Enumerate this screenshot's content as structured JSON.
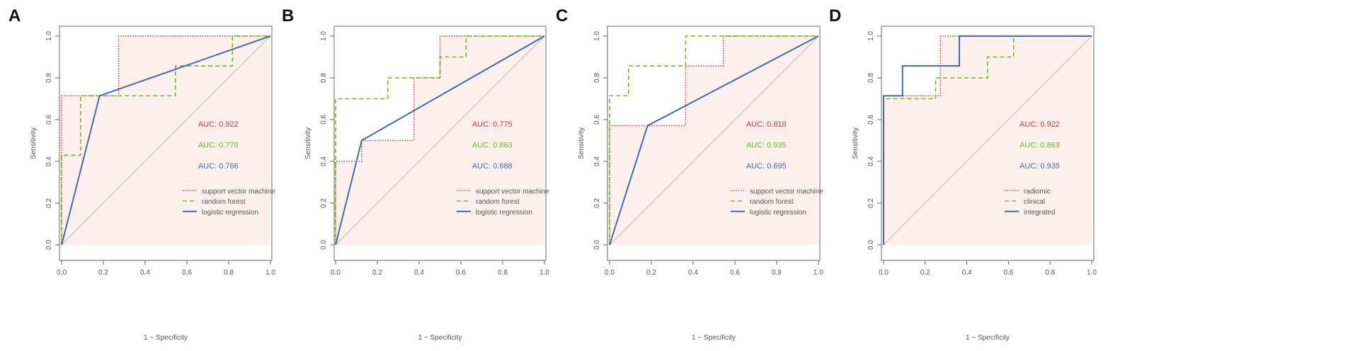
{
  "figure": {
    "description_panels": [
      "A",
      "B",
      "C",
      "D"
    ]
  },
  "colors": {
    "red": "#d63a3a",
    "green": "#66bb22",
    "blue": "#4468b0",
    "fill": "#fdf0ec",
    "diag": "#b8b8b8",
    "axis": "#666666",
    "text": "#555555"
  },
  "chart_data": [
    {
      "type": "line",
      "panel_label": "A",
      "xlabel": "1 − Specificity",
      "ylabel": "Sensitivity",
      "xlim": [
        0,
        1
      ],
      "ylim": [
        0,
        1
      ],
      "ticks": [
        "0.0",
        "0.2",
        "0.4",
        "0.6",
        "0.8",
        "1.0"
      ],
      "grid": false,
      "legend_position": "bottom-right",
      "series": [
        {
          "name": "support vector machine",
          "auc": "AUC: 0.922",
          "color_key": "red",
          "style": "dotted",
          "points": [
            [
              0,
              0
            ],
            [
              0,
              0.714
            ],
            [
              0.273,
              0.714
            ],
            [
              0.273,
              1
            ],
            [
              1,
              1
            ]
          ]
        },
        {
          "name": "random forest",
          "auc": "AUC: 0.779",
          "color_key": "green",
          "style": "dashed",
          "points": [
            [
              0,
              0
            ],
            [
              0,
              0.429
            ],
            [
              0.091,
              0.429
            ],
            [
              0.091,
              0.714
            ],
            [
              0.545,
              0.714
            ],
            [
              0.545,
              0.857
            ],
            [
              0.818,
              0.857
            ],
            [
              0.818,
              1
            ],
            [
              1,
              1
            ]
          ]
        },
        {
          "name": "logistic regression",
          "auc": "AUC: 0.766",
          "color_key": "blue",
          "style": "solid",
          "points": [
            [
              0,
              0
            ],
            [
              0.182,
              0.714
            ],
            [
              1,
              1
            ]
          ]
        }
      ]
    },
    {
      "type": "line",
      "panel_label": "B",
      "xlabel": "1 − Specificity",
      "ylabel": "Sensitivity",
      "xlim": [
        0,
        1
      ],
      "ylim": [
        0,
        1
      ],
      "ticks": [
        "0.0",
        "0.2",
        "0.4",
        "0.6",
        "0.8",
        "1.0"
      ],
      "grid": false,
      "legend_position": "bottom-right",
      "series": [
        {
          "name": "support vector machine",
          "auc": "AUC: 0.775",
          "color_key": "red",
          "style": "dotted",
          "points": [
            [
              0,
              0
            ],
            [
              0,
              0.4
            ],
            [
              0.125,
              0.4
            ],
            [
              0.125,
              0.5
            ],
            [
              0.375,
              0.5
            ],
            [
              0.375,
              0.8
            ],
            [
              0.5,
              0.8
            ],
            [
              0.5,
              1
            ],
            [
              1,
              1
            ]
          ]
        },
        {
          "name": "random forest",
          "auc": "AUC: 0.863",
          "color_key": "green",
          "style": "dashed",
          "points": [
            [
              0,
              0
            ],
            [
              0,
              0.7
            ],
            [
              0.25,
              0.7
            ],
            [
              0.25,
              0.8
            ],
            [
              0.5,
              0.8
            ],
            [
              0.5,
              0.9
            ],
            [
              0.625,
              0.9
            ],
            [
              0.625,
              1
            ],
            [
              1,
              1
            ]
          ]
        },
        {
          "name": "logistic regression",
          "auc": "AUC: 0.688",
          "color_key": "blue",
          "style": "solid",
          "points": [
            [
              0,
              0
            ],
            [
              0.125,
              0.5
            ],
            [
              1,
              1
            ]
          ]
        }
      ]
    },
    {
      "type": "line",
      "panel_label": "C",
      "xlabel": "1 − Specificity",
      "ylabel": "Sensitivity",
      "xlim": [
        0,
        1
      ],
      "ylim": [
        0,
        1
      ],
      "ticks": [
        "0.0",
        "0.2",
        "0.4",
        "0.6",
        "0.8",
        "1.0"
      ],
      "grid": false,
      "legend_position": "bottom-right",
      "series": [
        {
          "name": "support vector machine",
          "auc": "AUC: 0.818",
          "color_key": "red",
          "style": "dotted",
          "points": [
            [
              0,
              0
            ],
            [
              0,
              0.571
            ],
            [
              0.364,
              0.571
            ],
            [
              0.364,
              0.857
            ],
            [
              0.545,
              0.857
            ],
            [
              0.545,
              1
            ],
            [
              1,
              1
            ]
          ]
        },
        {
          "name": "random forest",
          "auc": "AUC: 0.935",
          "color_key": "green",
          "style": "dashed",
          "points": [
            [
              0,
              0
            ],
            [
              0,
              0.714
            ],
            [
              0.091,
              0.714
            ],
            [
              0.091,
              0.857
            ],
            [
              0.364,
              0.857
            ],
            [
              0.364,
              1
            ],
            [
              1,
              1
            ]
          ]
        },
        {
          "name": "logistic regression",
          "auc": "AUC: 0.695",
          "color_key": "blue",
          "style": "solid",
          "points": [
            [
              0,
              0
            ],
            [
              0.182,
              0.571
            ],
            [
              1,
              1
            ]
          ]
        }
      ]
    },
    {
      "type": "line",
      "panel_label": "D",
      "xlabel": "1 − Specificity",
      "ylabel": "Sensitivity",
      "xlim": [
        0,
        1
      ],
      "ylim": [
        0,
        1
      ],
      "ticks": [
        "0.0",
        "0.2",
        "0.4",
        "0.6",
        "0.8",
        "1.0"
      ],
      "grid": false,
      "legend_position": "bottom-right",
      "series": [
        {
          "name": "radiomic",
          "auc": "AUC: 0.922",
          "color_key": "red",
          "style": "dotted",
          "points": [
            [
              0,
              0
            ],
            [
              0,
              0.714
            ],
            [
              0.273,
              0.714
            ],
            [
              0.273,
              1
            ],
            [
              1,
              1
            ]
          ]
        },
        {
          "name": "clinical",
          "auc": "AUC: 0.863",
          "color_key": "green",
          "style": "dashed",
          "points": [
            [
              0,
              0
            ],
            [
              0,
              0.7
            ],
            [
              0.25,
              0.7
            ],
            [
              0.25,
              0.8
            ],
            [
              0.5,
              0.8
            ],
            [
              0.5,
              0.9
            ],
            [
              0.625,
              0.9
            ],
            [
              0.625,
              1
            ],
            [
              1,
              1
            ]
          ]
        },
        {
          "name": "integrated",
          "auc": "AUC: 0.935",
          "color_key": "blue",
          "style": "solid",
          "points": [
            [
              0,
              0
            ],
            [
              0,
              0.714
            ],
            [
              0.091,
              0.714
            ],
            [
              0.091,
              0.857
            ],
            [
              0.364,
              0.857
            ],
            [
              0.364,
              1
            ],
            [
              1,
              1
            ]
          ]
        }
      ]
    }
  ]
}
